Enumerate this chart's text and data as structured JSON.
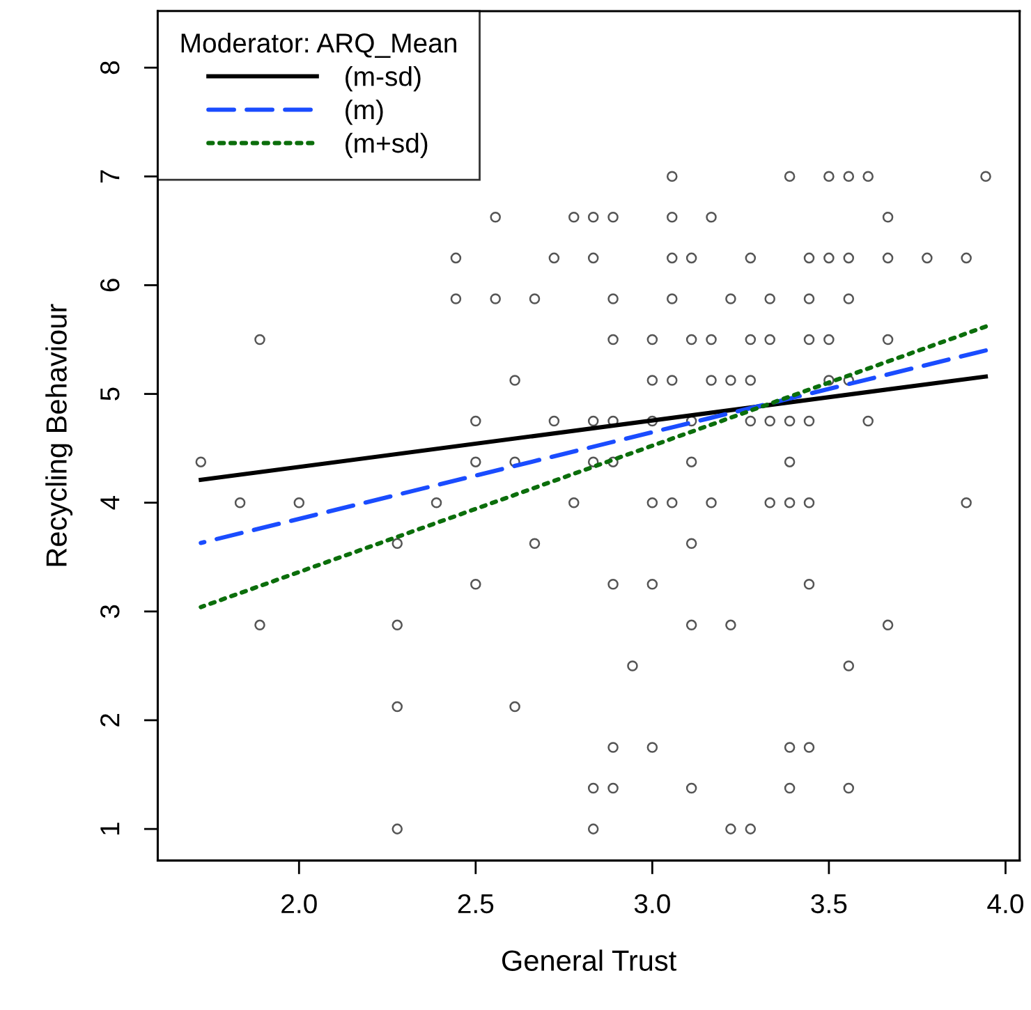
{
  "chart_data": {
    "type": "scatter",
    "xlabel": "General Trust",
    "ylabel": "Recycling Behaviour",
    "legend_title": "Moderator: ARQ_Mean",
    "legend": "top left",
    "grid": false,
    "xlim": [
      1.6,
      4.04
    ],
    "ylim": [
      0.71,
      8.52
    ],
    "xticks": [
      {
        "value": 2.0,
        "label": "2.0"
      },
      {
        "value": 2.5,
        "label": "2.5"
      },
      {
        "value": 3.0,
        "label": "3.0"
      },
      {
        "value": 3.5,
        "label": "3.5"
      },
      {
        "value": 4.0,
        "label": "4.0"
      }
    ],
    "yticks": [
      1,
      2,
      3,
      4,
      5,
      6,
      7,
      8
    ],
    "series": [
      {
        "color": "#555555",
        "marker": "circle",
        "x": [
          2.556,
          2.778,
          2.833,
          2.444,
          2.722,
          2.833,
          2.444,
          2.556,
          2.667,
          1.889,
          2.611,
          2.5,
          2.722,
          2.833,
          1.722,
          2.5,
          2.611,
          2.833,
          1.833,
          2.0,
          2.389,
          2.778,
          3.056,
          3.389,
          3.5,
          3.556,
          3.611,
          3.944,
          2.889,
          3.056,
          3.167,
          3.667,
          3.056,
          3.111,
          3.278,
          3.444,
          3.5,
          3.556,
          3.667,
          3.778,
          3.889,
          2.889,
          3.056,
          3.222,
          3.333,
          3.444,
          3.556,
          2.889,
          3.0,
          3.111,
          3.167,
          3.278,
          3.333,
          3.444,
          3.5,
          3.667,
          3.0,
          3.056,
          3.167,
          3.222,
          3.278,
          3.5,
          3.556,
          2.889,
          3.0,
          3.111,
          3.278,
          3.333,
          3.389,
          3.444,
          3.611,
          2.889,
          3.111,
          3.389,
          3.0,
          3.056,
          3.167,
          3.333,
          3.389,
          3.444,
          3.889,
          2.278,
          2.667,
          2.5,
          1.889,
          2.278,
          2.278,
          2.611,
          2.833,
          2.278,
          2.833,
          3.111,
          2.889,
          3.0,
          3.444,
          3.111,
          3.222,
          3.667,
          2.944,
          3.556,
          2.889,
          3.0,
          3.389,
          3.444,
          2.889,
          3.111,
          3.389,
          3.556,
          3.222,
          3.278
        ],
        "values": [
          6.625,
          6.625,
          6.625,
          6.25,
          6.25,
          6.25,
          5.875,
          5.875,
          5.875,
          5.5,
          5.125,
          4.75,
          4.75,
          4.75,
          4.375,
          4.375,
          4.375,
          4.375,
          4.0,
          4.0,
          4.0,
          4.0,
          7,
          7,
          7,
          7,
          7,
          7,
          6.625,
          6.625,
          6.625,
          6.625,
          6.25,
          6.25,
          6.25,
          6.25,
          6.25,
          6.25,
          6.25,
          6.25,
          6.25,
          5.875,
          5.875,
          5.875,
          5.875,
          5.875,
          5.875,
          5.5,
          5.5,
          5.5,
          5.5,
          5.5,
          5.5,
          5.5,
          5.5,
          5.5,
          5.125,
          5.125,
          5.125,
          5.125,
          5.125,
          5.125,
          5.125,
          4.75,
          4.75,
          4.75,
          4.75,
          4.75,
          4.75,
          4.75,
          4.75,
          4.375,
          4.375,
          4.375,
          4.0,
          4.0,
          4.0,
          4.0,
          4.0,
          4.0,
          4.0,
          3.625,
          3.625,
          3.25,
          2.875,
          2.875,
          2.125,
          2.125,
          1.375,
          1.0,
          1.0,
          3.625,
          3.25,
          3.25,
          3.25,
          2.875,
          2.875,
          2.875,
          2.5,
          2.5,
          1.75,
          1.75,
          1.75,
          1.75,
          1.375,
          1.375,
          1.375,
          1.375,
          1.0,
          1.0
        ]
      },
      {
        "type": "line",
        "name": "(m-sd)",
        "color": "#000000",
        "line_style": "solid",
        "x": [
          1.722,
          3.944
        ],
        "values": [
          4.21,
          5.16
        ]
      },
      {
        "type": "line",
        "name": "(m)",
        "color": "#1a4cff",
        "line_style": "dashed",
        "x": [
          1.722,
          3.944
        ],
        "values": [
          3.63,
          5.4
        ]
      },
      {
        "type": "line",
        "name": "(m+sd)",
        "color": "#0b6e0b",
        "line_style": "dotted",
        "x": [
          1.722,
          3.944
        ],
        "values": [
          3.04,
          5.62
        ]
      }
    ]
  }
}
